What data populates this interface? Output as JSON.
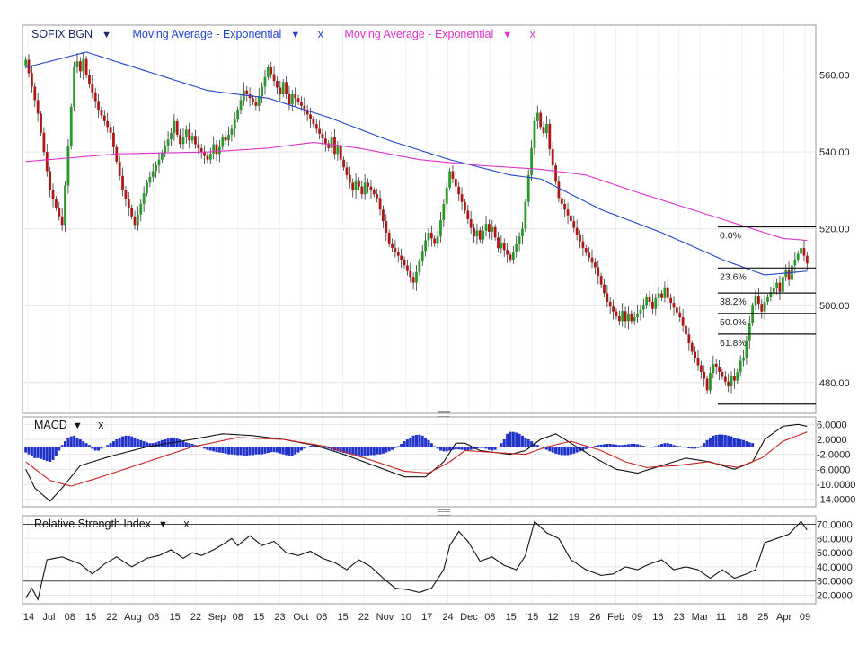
{
  "chart_data": [
    {
      "type": "candlestick",
      "panel": "price",
      "legend": {
        "instrument": "SOFIX BGN",
        "ma1": "Moving Average - Exponential",
        "ma2": "Moving Average - Exponential",
        "close_mark": "x",
        "dropdown_mark": "▼"
      },
      "colors": {
        "up": "#2a9a2a",
        "down": "#b01818",
        "ma_slow": "#2244cc",
        "ma_fast": "#dd33cc"
      },
      "ylim": [
        472,
        573
      ],
      "yticks": [
        "560.00",
        "540.00",
        "520.00",
        "500.00",
        "480.00"
      ],
      "ytick_values": [
        560,
        540,
        520,
        500,
        480
      ],
      "xticks": [
        "'14",
        "Jul",
        "08",
        "15",
        "22",
        "Aug",
        "08",
        "15",
        "22",
        "Sep",
        "08",
        "15",
        "23",
        "Oct",
        "08",
        "15",
        "22",
        "Nov",
        "10",
        "17",
        "24",
        "Dec",
        "08",
        "15",
        "'15",
        "12",
        "19",
        "26",
        "Feb",
        "09",
        "16",
        "23",
        "Mar",
        "11",
        "18",
        "25",
        "Apr",
        "09"
      ],
      "close_anchors": [
        [
          0,
          564
        ],
        [
          4,
          550
        ],
        [
          8,
          530
        ],
        [
          12,
          521
        ],
        [
          16,
          562
        ],
        [
          20,
          560
        ],
        [
          24,
          551
        ],
        [
          28,
          545
        ],
        [
          32,
          530
        ],
        [
          36,
          521
        ],
        [
          40,
          532
        ],
        [
          44,
          538
        ],
        [
          48,
          545
        ],
        [
          52,
          544
        ],
        [
          56,
          542
        ],
        [
          60,
          538
        ],
        [
          64,
          540
        ],
        [
          68,
          546
        ],
        [
          72,
          556
        ],
        [
          76,
          552
        ],
        [
          80,
          562
        ],
        [
          84,
          555
        ],
        [
          88,
          555
        ],
        [
          92,
          551
        ],
        [
          96,
          546
        ],
        [
          100,
          541
        ],
        [
          104,
          538
        ],
        [
          108,
          530
        ],
        [
          112,
          532
        ],
        [
          116,
          528
        ],
        [
          120,
          516
        ],
        [
          124,
          512
        ],
        [
          128,
          506
        ],
        [
          132,
          517
        ],
        [
          136,
          518
        ],
        [
          140,
          535
        ],
        [
          144,
          527
        ],
        [
          148,
          518
        ],
        [
          152,
          520
        ],
        [
          156,
          517
        ],
        [
          160,
          512
        ],
        [
          164,
          520
        ],
        [
          168,
          548
        ],
        [
          172,
          545
        ],
        [
          176,
          528
        ],
        [
          180,
          522
        ],
        [
          184,
          515
        ],
        [
          188,
          510
        ],
        [
          192,
          501
        ],
        [
          196,
          496
        ],
        [
          200,
          496
        ],
        [
          204,
          500
        ],
        [
          208,
          502
        ],
        [
          212,
          502
        ],
        [
          216,
          497
        ],
        [
          220,
          488
        ],
        [
          224,
          481
        ],
        [
          228,
          484
        ],
        [
          232,
          479
        ],
        [
          236,
          482
        ],
        [
          240,
          500
        ],
        [
          244,
          501
        ],
        [
          248,
          506
        ],
        [
          252,
          509
        ],
        [
          256,
          515
        ],
        [
          258,
          511
        ]
      ],
      "ma_slow_anchors": [
        [
          0,
          562
        ],
        [
          20,
          566
        ],
        [
          40,
          561
        ],
        [
          60,
          556
        ],
        [
          80,
          554
        ],
        [
          100,
          549
        ],
        [
          120,
          543
        ],
        [
          140,
          538
        ],
        [
          160,
          534
        ],
        [
          170,
          533
        ],
        [
          190,
          525
        ],
        [
          210,
          519
        ],
        [
          230,
          512
        ],
        [
          244,
          508
        ],
        [
          258,
          509
        ]
      ],
      "ma_fast_anchors": [
        [
          0,
          537.5
        ],
        [
          30,
          539.5
        ],
        [
          60,
          540
        ],
        [
          80,
          541
        ],
        [
          95,
          542.5
        ],
        [
          110,
          541
        ],
        [
          130,
          538
        ],
        [
          150,
          536.5
        ],
        [
          170,
          535.5
        ],
        [
          185,
          534
        ],
        [
          200,
          530
        ],
        [
          220,
          525
        ],
        [
          240,
          520
        ],
        [
          250,
          517.5
        ],
        [
          258,
          517
        ]
      ],
      "fibonacci": {
        "levels": [
          "0.0%",
          "23.6%",
          "38.2%",
          "50.0%",
          "61.8%"
        ],
        "level_values": [
          520.5,
          509.8,
          503.3,
          498.0,
          492.6
        ],
        "low_value": 474.4
      }
    },
    {
      "type": "line",
      "panel": "macd",
      "title": "MACD",
      "close_mark": "x",
      "ylim": [
        -16,
        8
      ],
      "yticks": [
        "6.0000",
        "2.0000",
        "-2.0000",
        "-6.0000",
        "-10.0000",
        "-14.0000"
      ],
      "ytick_values": [
        6,
        2,
        -2,
        -6,
        -10,
        -14
      ],
      "series": [
        {
          "color": "#111111",
          "anchors": [
            [
              0,
              -6
            ],
            [
              3,
              -11
            ],
            [
              8,
              -14.5
            ],
            [
              12,
              -11
            ],
            [
              18,
              -5
            ],
            [
              28,
              -2.5
            ],
            [
              40,
              0
            ],
            [
              55,
              2
            ],
            [
              65,
              3.5
            ],
            [
              75,
              3
            ],
            [
              85,
              2
            ],
            [
              95,
              0.5
            ],
            [
              105,
              -2
            ],
            [
              115,
              -5
            ],
            [
              125,
              -8
            ],
            [
              132,
              -8
            ],
            [
              138,
              -4
            ],
            [
              142,
              1
            ],
            [
              145,
              1
            ],
            [
              150,
              -1
            ],
            [
              160,
              -2
            ],
            [
              165,
              -1
            ],
            [
              170,
              2
            ],
            [
              175,
              3.5
            ],
            [
              180,
              1
            ],
            [
              188,
              -3
            ],
            [
              195,
              -6
            ],
            [
              202,
              -7
            ],
            [
              210,
              -5
            ],
            [
              218,
              -3
            ],
            [
              226,
              -4
            ],
            [
              234,
              -6
            ],
            [
              240,
              -4
            ],
            [
              244,
              2
            ],
            [
              250,
              5.5
            ],
            [
              255,
              6
            ],
            [
              258,
              5.5
            ]
          ]
        },
        {
          "color": "#cc2222",
          "anchors": [
            [
              0,
              -4
            ],
            [
              8,
              -9
            ],
            [
              15,
              -10.5
            ],
            [
              25,
              -8
            ],
            [
              40,
              -4
            ],
            [
              55,
              0
            ],
            [
              70,
              2.5
            ],
            [
              85,
              2
            ],
            [
              100,
              0
            ],
            [
              112,
              -3
            ],
            [
              125,
              -6.5
            ],
            [
              133,
              -7
            ],
            [
              140,
              -4
            ],
            [
              145,
              -1
            ],
            [
              155,
              -1.5
            ],
            [
              165,
              -2
            ],
            [
              172,
              0
            ],
            [
              180,
              1.5
            ],
            [
              190,
              -1
            ],
            [
              198,
              -4
            ],
            [
              205,
              -5.5
            ],
            [
              215,
              -5
            ],
            [
              225,
              -4
            ],
            [
              235,
              -5.5
            ],
            [
              243,
              -3
            ],
            [
              250,
              1.5
            ],
            [
              258,
              4
            ]
          ]
        }
      ],
      "histogram_values": [
        -1.5,
        -2,
        -2.5,
        -3,
        -3,
        -3.2,
        -3.5,
        -3.8,
        -4,
        -3.5,
        -2.5,
        -1,
        0.5,
        1.5,
        2.5,
        2.8,
        3,
        2.5,
        2,
        1.5,
        1,
        0.5,
        -0.5,
        -1,
        -1,
        -0.5,
        0,
        0.5,
        1,
        1.5,
        2,
        2.5,
        2.8,
        3,
        3,
        2.8,
        2.5,
        2,
        1.8,
        1.5,
        1.2,
        1,
        1,
        1.2,
        1.5,
        1.8,
        2,
        2.2,
        2.5,
        2.5,
        2.2,
        2,
        1.5,
        1.2,
        1,
        0.8,
        0.5,
        0.2,
        -0.2,
        -0.5,
        -0.8,
        -1,
        -1.2,
        -1.4,
        -1.5,
        -1.6,
        -1.8,
        -2,
        -2,
        -2.1,
        -2.2,
        -2.2,
        -2.3,
        -2.3,
        -2.2,
        -2.2,
        -2,
        -2,
        -2,
        -1.8,
        -1.6,
        -1.4,
        -1.4,
        -1.5,
        -1.8,
        -2,
        -2.2,
        -2.3,
        -2.3,
        -2,
        -1.5,
        -1,
        -0.5,
        0,
        0.3,
        0.5,
        0.5,
        0.3,
        0,
        -0.3,
        -0.5,
        -0.8,
        -1,
        -1.2,
        -1.4,
        -1.6,
        -1.8,
        -2,
        -2.2,
        -2.2,
        -2.3,
        -2.3,
        -2.3,
        -2.3,
        -2.2,
        -2.2,
        -2,
        -2,
        -1.8,
        -1.5,
        -1.2,
        -0.8,
        -0.3,
        0.2,
        0.8,
        1.5,
        2,
        2.5,
        3,
        3.2,
        3.3,
        3,
        2.5,
        1.8,
        1,
        0.2,
        -0.5,
        -1,
        -1.2,
        -1.2,
        -1,
        -0.8,
        -0.7,
        -0.7,
        -0.8,
        -0.9,
        -0.9,
        -0.8,
        -0.6,
        -0.4,
        -0.3,
        -0.3,
        -0.5,
        -0.8,
        -1,
        -0.8,
        0,
        1,
        2,
        3.5,
        4,
        4,
        3.8,
        3.5,
        3,
        2.5,
        2,
        1.5,
        1,
        0.5,
        0,
        -0.5,
        -0.8,
        -1.2,
        -1.5,
        -1.8,
        -2,
        -2.2,
        -2.2,
        -2.2,
        -2,
        -1.8,
        -1.5,
        -1.2,
        -1,
        -0.6,
        -0.3,
        0,
        0.3,
        0.5,
        0.6,
        0.7,
        0.8,
        0.8,
        0.7,
        0.6,
        0.5,
        0.5,
        0.6,
        0.7,
        0.8,
        0.8,
        0.7,
        0.5,
        0.3,
        0.1,
        0,
        0,
        0.2,
        0.5,
        0.8,
        1,
        1,
        0.8,
        0.5,
        0.3,
        0.2,
        0,
        -0.2,
        -0.4,
        -0.5,
        -0.5,
        -0.3,
        0.2,
        1,
        1.8,
        2.5,
        3,
        3.2,
        3.3,
        3.3,
        3.2,
        3,
        2.8,
        2.5,
        2.2,
        2,
        1.8,
        1.5,
        1.2,
        1
      ]
    },
    {
      "type": "line",
      "panel": "rsi",
      "title": "Relative Strength Index",
      "close_mark": "x",
      "dropdown_mark": "▼",
      "ylim": [
        14,
        76
      ],
      "yticks": [
        "70.0000",
        "60.0000",
        "50.0000",
        "40.0000",
        "30.0000",
        "20.0000"
      ],
      "ytick_values": [
        70,
        60,
        50,
        40,
        30,
        20
      ],
      "reference_lines": [
        70,
        30
      ],
      "series": [
        {
          "color": "#111111",
          "anchors": [
            [
              0,
              18
            ],
            [
              2,
              25
            ],
            [
              4,
              17
            ],
            [
              7,
              45
            ],
            [
              12,
              47
            ],
            [
              18,
              42
            ],
            [
              22,
              35
            ],
            [
              26,
              42
            ],
            [
              30,
              47
            ],
            [
              35,
              40
            ],
            [
              40,
              46
            ],
            [
              44,
              48
            ],
            [
              48,
              52
            ],
            [
              52,
              46
            ],
            [
              55,
              50
            ],
            [
              58,
              48
            ],
            [
              62,
              52
            ],
            [
              66,
              57
            ],
            [
              68,
              60
            ],
            [
              70,
              55
            ],
            [
              74,
              62
            ],
            [
              78,
              55
            ],
            [
              82,
              58
            ],
            [
              86,
              50
            ],
            [
              90,
              48
            ],
            [
              94,
              51
            ],
            [
              98,
              46
            ],
            [
              102,
              43
            ],
            [
              106,
              38
            ],
            [
              110,
              45
            ],
            [
              114,
              40
            ],
            [
              118,
              32
            ],
            [
              122,
              25
            ],
            [
              126,
              24
            ],
            [
              130,
              22
            ],
            [
              134,
              25
            ],
            [
              138,
              38
            ],
            [
              140,
              55
            ],
            [
              143,
              65
            ],
            [
              146,
              58
            ],
            [
              150,
              44
            ],
            [
              154,
              47
            ],
            [
              158,
              41
            ],
            [
              162,
              38
            ],
            [
              165,
              48
            ],
            [
              168,
              72
            ],
            [
              172,
              64
            ],
            [
              176,
              60
            ],
            [
              180,
              45
            ],
            [
              185,
              38
            ],
            [
              190,
              34
            ],
            [
              194,
              35
            ],
            [
              198,
              40
            ],
            [
              202,
              38
            ],
            [
              206,
              42
            ],
            [
              210,
              45
            ],
            [
              214,
              38
            ],
            [
              218,
              40
            ],
            [
              222,
              38
            ],
            [
              226,
              32
            ],
            [
              230,
              38
            ],
            [
              234,
              32
            ],
            [
              238,
              35
            ],
            [
              241,
              38
            ],
            [
              244,
              57
            ],
            [
              248,
              60
            ],
            [
              252,
              63
            ],
            [
              256,
              72
            ],
            [
              258,
              66
            ]
          ]
        }
      ]
    }
  ]
}
